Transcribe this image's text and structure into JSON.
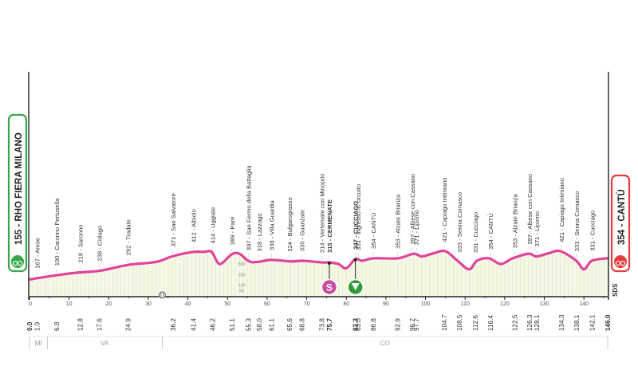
{
  "start_label": "155 - RHO FIERA MILANO",
  "finish_label": "354 - CANTÙ",
  "finish_side_code": "SDS",
  "sprint_badge": "S",
  "colors": {
    "profile_line": "#e0449a",
    "profile_fill": "#f6f8e6",
    "start_accent": "#3aa64a",
    "finish_accent": "#e43c3c",
    "sprint_badge": "#c64ea0",
    "gpm_badge": "#2f9c3a",
    "text": "#333333",
    "region_text": "#999999"
  },
  "icons": {
    "start": "start-bike-icon",
    "finish": "finish-bike-icon",
    "sprint": "intermediate-sprint-icon",
    "gpm": "climb-triangle-icon",
    "railway": "railway-crossing-icon"
  },
  "chart_data": {
    "type": "area",
    "title": "",
    "xlabel": "",
    "ylabel": "",
    "xlim": [
      0,
      146
    ],
    "ylim": [
      0,
      450
    ],
    "grid": false,
    "x_ticks": [
      0,
      10,
      20,
      30,
      40,
      50,
      60,
      70,
      80,
      90,
      100,
      110,
      120,
      130,
      140
    ],
    "y_scale_ticks": [
      0,
      50,
      100,
      200,
      300
    ],
    "profile": [
      [
        0,
        155
      ],
      [
        2,
        167
      ],
      [
        6,
        190
      ],
      [
        12,
        218
      ],
      [
        18,
        238
      ],
      [
        25,
        292
      ],
      [
        32,
        320
      ],
      [
        36,
        371
      ],
      [
        41,
        412
      ],
      [
        44,
        414
      ],
      [
        46,
        414
      ],
      [
        48,
        300
      ],
      [
        51,
        389
      ],
      [
        53,
        397
      ],
      [
        56,
        318
      ],
      [
        61,
        338
      ],
      [
        66,
        324
      ],
      [
        69,
        330
      ],
      [
        74,
        314
      ],
      [
        75.7,
        315
      ],
      [
        78,
        300
      ],
      [
        80,
        260
      ],
      [
        82.3,
        347
      ],
      [
        84,
        331
      ],
      [
        87,
        354
      ],
      [
        93,
        353
      ],
      [
        97,
        397
      ],
      [
        99,
        371
      ],
      [
        102,
        400
      ],
      [
        105,
        421
      ],
      [
        108,
        333
      ],
      [
        111,
        250
      ],
      [
        113,
        331
      ],
      [
        116,
        354
      ],
      [
        119,
        300
      ],
      [
        122,
        353
      ],
      [
        126,
        397
      ],
      [
        128,
        371
      ],
      [
        131,
        400
      ],
      [
        134,
        421
      ],
      [
        138,
        333
      ],
      [
        140,
        250
      ],
      [
        142,
        331
      ],
      [
        146,
        354
      ]
    ],
    "distance_labels": [
      {
        "km": 0,
        "text": "0.0",
        "bold": true
      },
      {
        "km": 1.9,
        "text": "1.9"
      },
      {
        "km": 6.8,
        "text": "6.8"
      },
      {
        "km": 12.8,
        "text": "12.8"
      },
      {
        "km": 17.6,
        "text": "17.6"
      },
      {
        "km": 24.9,
        "text": "24.9"
      },
      {
        "km": 36.2,
        "text": "36.2"
      },
      {
        "km": 41.4,
        "text": "41.4"
      },
      {
        "km": 46.2,
        "text": "46.2"
      },
      {
        "km": 51.1,
        "text": "51.1"
      },
      {
        "km": 55.3,
        "text": "55.3"
      },
      {
        "km": 58.0,
        "text": "58.0"
      },
      {
        "km": 61.1,
        "text": "61.1"
      },
      {
        "km": 65.6,
        "text": "65.6"
      },
      {
        "km": 68.8,
        "text": "68.8"
      },
      {
        "km": 73.8,
        "text": "73.8"
      },
      {
        "km": 75.7,
        "text": "75.7",
        "bold": true
      },
      {
        "km": 82.3,
        "text": "82.3",
        "bold": true
      },
      {
        "km": 83.0,
        "text": "83.0"
      },
      {
        "km": 86.8,
        "text": "86.8"
      },
      {
        "km": 92.9,
        "text": "92.9"
      },
      {
        "km": 96.7,
        "text": "96.7"
      },
      {
        "km": 97.7,
        "text": "97.7"
      },
      {
        "km": 104.7,
        "text": "104.7"
      },
      {
        "km": 108.5,
        "text": "108.5"
      },
      {
        "km": 112.6,
        "text": "112.6"
      },
      {
        "km": 116.4,
        "text": "116.4"
      },
      {
        "km": 122.5,
        "text": "122.5"
      },
      {
        "km": 126.3,
        "text": "126.3"
      },
      {
        "km": 128.1,
        "text": "128.1"
      },
      {
        "km": 134.3,
        "text": "134.3"
      },
      {
        "km": 138.1,
        "text": "138.1"
      },
      {
        "km": 142.1,
        "text": "142.1"
      },
      {
        "km": 146.0,
        "text": "146.0",
        "bold": true
      }
    ],
    "places": [
      {
        "km": 1.9,
        "text": "167 - Arese"
      },
      {
        "km": 6.8,
        "text": "190 - Caronno Pertusella"
      },
      {
        "km": 12.8,
        "text": "218 - Saronno"
      },
      {
        "km": 17.6,
        "text": "238 - Cislago"
      },
      {
        "km": 24.9,
        "text": "292 - Tradate"
      },
      {
        "km": 36.2,
        "text": "371 - San Salvatore"
      },
      {
        "km": 41.4,
        "text": "412 - Albiolo"
      },
      {
        "km": 46.2,
        "text": "414 - Uggiate"
      },
      {
        "km": 51.1,
        "text": "389 - Parè"
      },
      {
        "km": 55.3,
        "text": "397 - San Fermo della Battaglia"
      },
      {
        "km": 58.0,
        "text": "318 - Lazzago"
      },
      {
        "km": 61.1,
        "text": "338 - Villa Guardia"
      },
      {
        "km": 65.6,
        "text": "324 - Bulgarograsso"
      },
      {
        "km": 68.8,
        "text": "330 - Guanzate"
      },
      {
        "km": 73.8,
        "text": "314 - Vertemate con Minoprio"
      },
      {
        "km": 75.7,
        "text": "315 - CERMENATE",
        "bold": true
      },
      {
        "km": 82.3,
        "text": "347 - CUCCIAGO",
        "bold": true
      },
      {
        "km": 83.0,
        "text": "331 - Ingresso in circuito"
      },
      {
        "km": 86.8,
        "text": "354 - CANTÙ"
      },
      {
        "km": 92.9,
        "text": "353 - Alzate Brianza"
      },
      {
        "km": 96.7,
        "text": "397 - Albese con Cassano"
      },
      {
        "km": 97.7,
        "text": "371 - Lipomo"
      },
      {
        "km": 104.7,
        "text": "421 - Capiago Intimiano"
      },
      {
        "km": 108.5,
        "text": "333 - Senna Comasco"
      },
      {
        "km": 112.6,
        "text": "331 - Cucciago"
      },
      {
        "km": 116.4,
        "text": "354 - CANTÙ"
      },
      {
        "km": 122.5,
        "text": "353 - Alzate Brianza"
      },
      {
        "km": 126.3,
        "text": "397 - Albese con Cassano"
      },
      {
        "km": 128.1,
        "text": "371 - Lipomo"
      },
      {
        "km": 134.3,
        "text": "421 - Capiago Intimiano"
      },
      {
        "km": 138.1,
        "text": "333 - Senna Comasco"
      },
      {
        "km": 142.1,
        "text": "331 - Cucciago"
      }
    ],
    "markers": [
      {
        "km": 75.7,
        "type": "sprint"
      },
      {
        "km": 82.3,
        "type": "gpm"
      },
      {
        "km": 33.5,
        "type": "railway"
      }
    ],
    "provinces": [
      {
        "name": "MI",
        "from": 0,
        "to": 4.5
      },
      {
        "name": "VA",
        "from": 4.5,
        "to": 33.5
      },
      {
        "name": "CO",
        "from": 33.5,
        "to": 146
      }
    ]
  }
}
